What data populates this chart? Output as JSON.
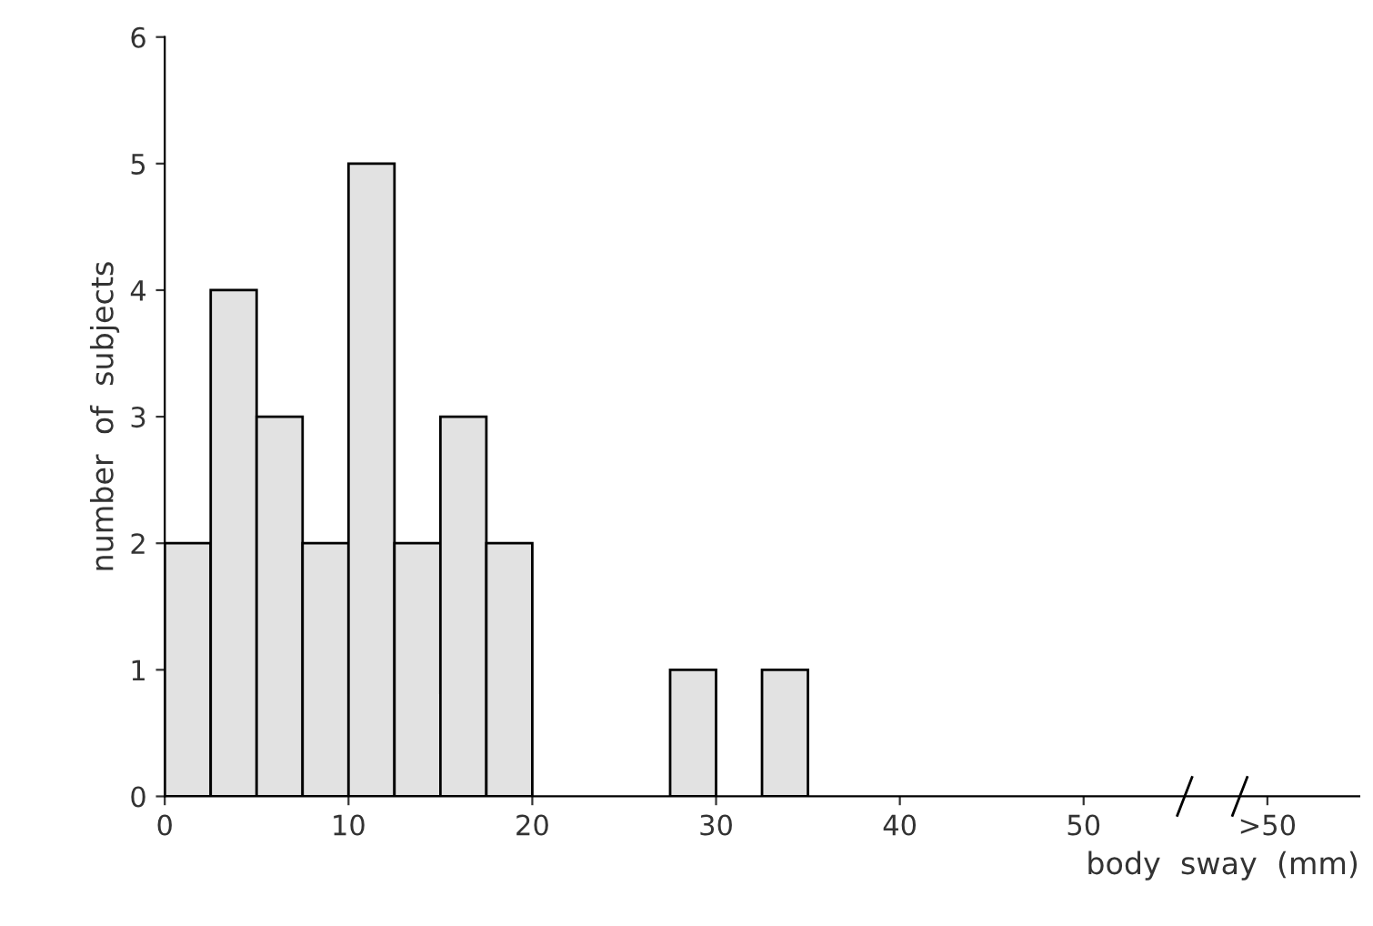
{
  "chart_data": {
    "type": "histogram",
    "xlabel": "body  sway  (mm)",
    "ylabel": "number  of  subjects",
    "bins": [
      0,
      2.5,
      5,
      7.5,
      10,
      12.5,
      15,
      17.5,
      20,
      22.5,
      25,
      27.5,
      30,
      32.5,
      35
    ],
    "values": [
      2,
      4,
      3,
      2,
      5,
      2,
      3,
      2,
      0,
      0,
      0,
      1,
      0,
      1
    ],
    "color": "#e2e2e2",
    "xlim": [
      0,
      65
    ],
    "xticks": [
      0,
      10,
      20,
      30,
      40,
      50,
      {
        "value": 60,
        "label": ">50"
      }
    ],
    "ylim": [
      0,
      6
    ],
    "yticks": [
      0,
      1,
      2,
      3,
      4,
      5,
      6
    ],
    "grid": false
  }
}
